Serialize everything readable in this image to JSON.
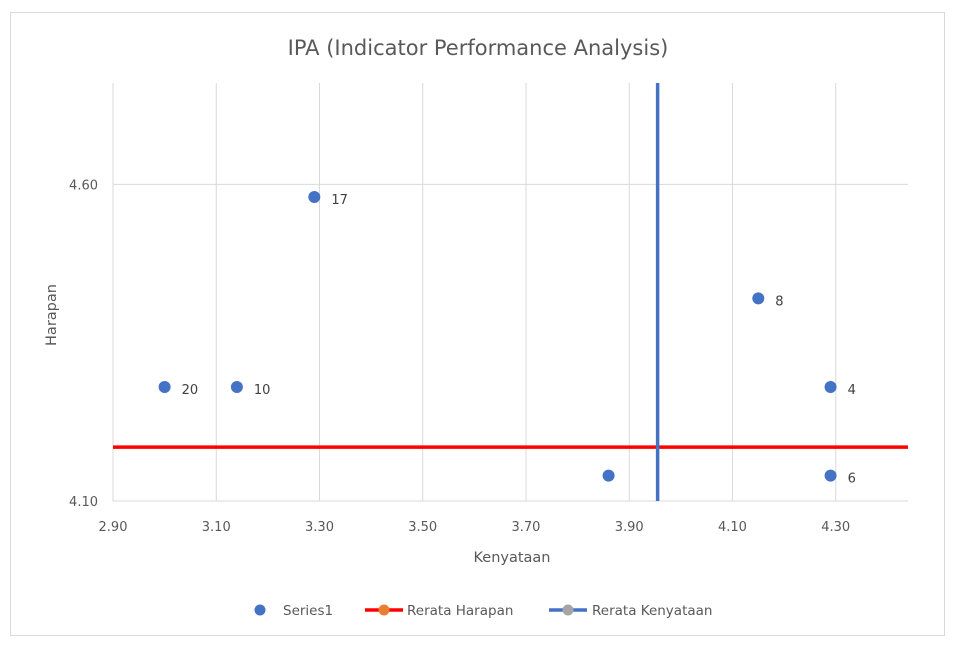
{
  "chart_data": {
    "type": "scatter",
    "title": "IPA (Indicator Performance Analysis)",
    "xlabel": "Kenyataan",
    "ylabel": "Harapan",
    "xlim": [
      2.9,
      4.44
    ],
    "ylim": [
      4.1,
      4.76
    ],
    "x_ticks": [
      "2.90",
      "3.10",
      "3.30",
      "3.50",
      "3.70",
      "3.90",
      "4.10",
      "4.30"
    ],
    "x_tick_values": [
      2.9,
      3.1,
      3.3,
      3.5,
      3.7,
      3.9,
      4.1,
      4.3
    ],
    "y_ticks": [
      "4.10",
      "4.60"
    ],
    "y_tick_values": [
      4.1,
      4.6
    ],
    "grid": true,
    "legend_position": "bottom",
    "series": [
      {
        "name": "Series1",
        "color": "#4472c4",
        "points": [
          {
            "x": 3.0,
            "y": 4.28,
            "label": "20"
          },
          {
            "x": 3.14,
            "y": 4.28,
            "label": "10"
          },
          {
            "x": 3.29,
            "y": 4.58,
            "label": "17"
          },
          {
            "x": 3.86,
            "y": 4.14,
            "label": ""
          },
          {
            "x": 4.15,
            "y": 4.42,
            "label": "8"
          },
          {
            "x": 4.29,
            "y": 4.28,
            "label": "4"
          },
          {
            "x": 4.29,
            "y": 4.14,
            "label": "6"
          }
        ]
      },
      {
        "name": "Rerata Harapan",
        "color": "#ff0000",
        "marker_color": "#ed7d31",
        "orientation": "horizontal",
        "value": 4.185
      },
      {
        "name": "Rerata Kenyataan",
        "color": "#4472c4",
        "marker_color": "#a5a5a5",
        "orientation": "vertical",
        "value": 3.955
      }
    ]
  }
}
